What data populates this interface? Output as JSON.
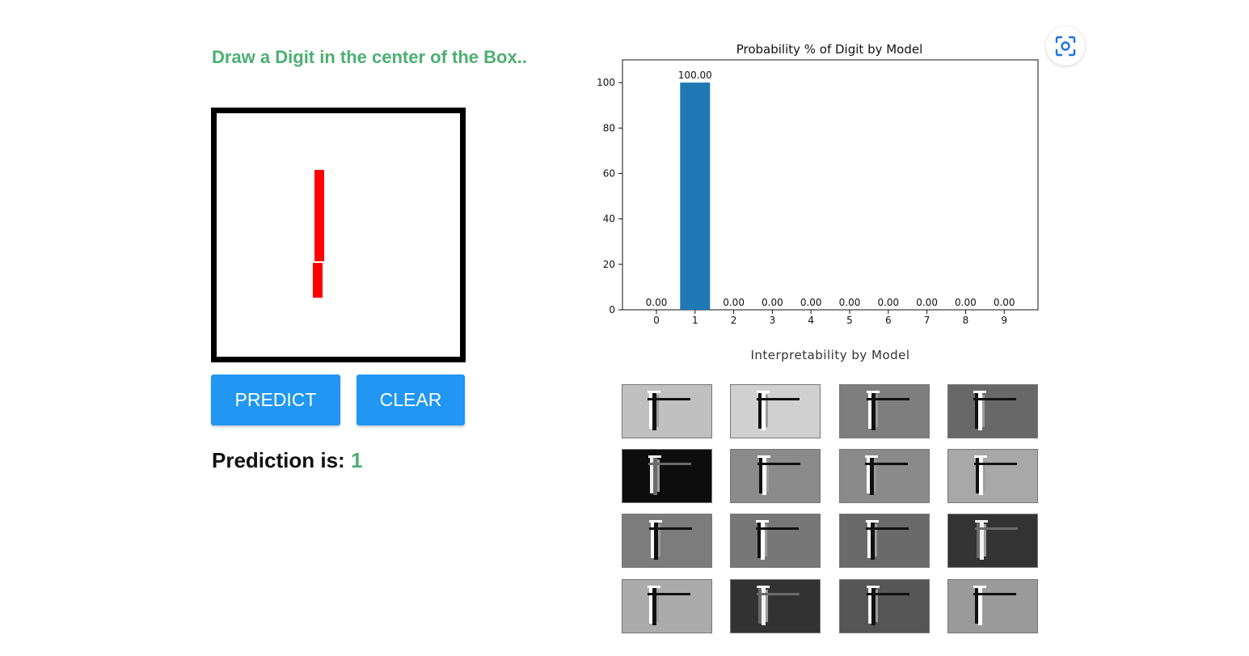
{
  "instruction": "Draw a Digit in the center of the Box..",
  "buttons": {
    "predict": "PREDICT",
    "clear": "CLEAR"
  },
  "prediction": {
    "label": "Prediction is:",
    "value": "1"
  },
  "colors": {
    "accent_green": "#4CAF72",
    "button_blue": "#2196F3",
    "stroke_red": "#FF0000",
    "bar_blue": "#1F77B4"
  },
  "chart_data": {
    "type": "bar",
    "title": "Probability % of Digit by Model",
    "categories": [
      "0",
      "1",
      "2",
      "3",
      "4",
      "5",
      "6",
      "7",
      "8",
      "9"
    ],
    "values": [
      0,
      100,
      0,
      0,
      0,
      0,
      0,
      0,
      0,
      0
    ],
    "data_labels": [
      "0.00",
      "100.00",
      "0.00",
      "0.00",
      "0.00",
      "0.00",
      "0.00",
      "0.00",
      "0.00",
      "0.00"
    ],
    "yticks": [
      0,
      20,
      40,
      60,
      80,
      100
    ],
    "ylim": [
      0,
      110
    ],
    "xlabel": "",
    "ylabel": "",
    "grid": false,
    "legend": "none"
  },
  "interpretability": {
    "title": "Interpretability by Model",
    "maps": [
      {
        "bg": "#c0c0c0"
      },
      {
        "bg": "#d0d0d0"
      },
      {
        "bg": "#7e7e7e"
      },
      {
        "bg": "#686868"
      },
      {
        "bg": "#0d0d0d"
      },
      {
        "bg": "#8b8b8b"
      },
      {
        "bg": "#8a8a8a"
      },
      {
        "bg": "#a8a8a8"
      },
      {
        "bg": "#7c7c7c"
      },
      {
        "bg": "#777777"
      },
      {
        "bg": "#6a6a6a"
      },
      {
        "bg": "#333333"
      },
      {
        "bg": "#ababab"
      },
      {
        "bg": "#323232"
      },
      {
        "bg": "#555555"
      },
      {
        "bg": "#9a9a9a"
      }
    ]
  },
  "lens_icon": "screenshot-search-icon"
}
